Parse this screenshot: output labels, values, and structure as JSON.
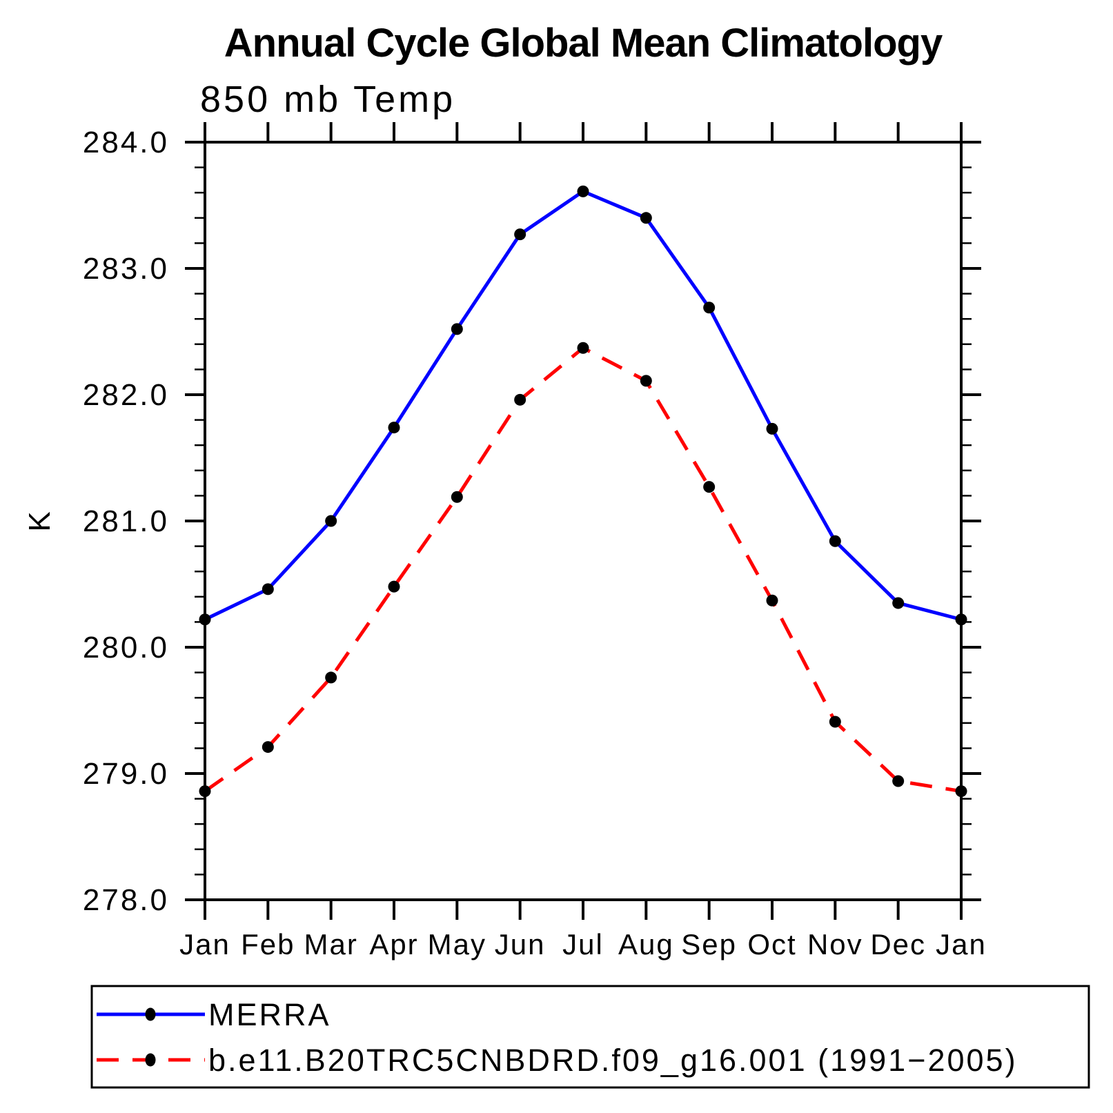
{
  "header": {
    "title": "Annual Cycle Global Mean Climatology",
    "subtitle": "850 mb Temp"
  },
  "chart_data": {
    "type": "line",
    "title": "Annual Cycle Global Mean Climatology",
    "subtitle": "850 mb Temp",
    "xlabel": "",
    "ylabel": "K",
    "categories": [
      "Jan",
      "Feb",
      "Mar",
      "Apr",
      "May",
      "Jun",
      "Jul",
      "Aug",
      "Sep",
      "Oct",
      "Nov",
      "Dec",
      "Jan"
    ],
    "ylim": [
      278.0,
      284.0
    ],
    "ytick_major_interval": 1.0,
    "ytick_minor_interval": 0.2,
    "ytick_labels": [
      "284.0",
      "283.0",
      "282.0",
      "281.0",
      "280.0",
      "279.0",
      "278.0"
    ],
    "grid": false,
    "legend_position": "bottom-left-box",
    "axis_color": "#000000",
    "marker_color": "#000000",
    "series": [
      {
        "name": "MERRA",
        "color": "#0000ff",
        "line_style": "solid",
        "marker": "filled-circle",
        "values": [
          280.22,
          280.46,
          281.0,
          281.74,
          282.52,
          283.27,
          283.61,
          283.4,
          282.69,
          281.73,
          280.84,
          280.35,
          280.22
        ]
      },
      {
        "name": "b.e11.B20TRC5CNBDRD.f09_g16.001 (1991−2005)",
        "color": "#ff0000",
        "line_style": "dashed",
        "marker": "filled-circle",
        "values": [
          278.86,
          279.21,
          279.76,
          280.48,
          281.19,
          281.96,
          282.37,
          282.11,
          281.27,
          280.37,
          279.41,
          278.94,
          278.86
        ]
      }
    ]
  }
}
